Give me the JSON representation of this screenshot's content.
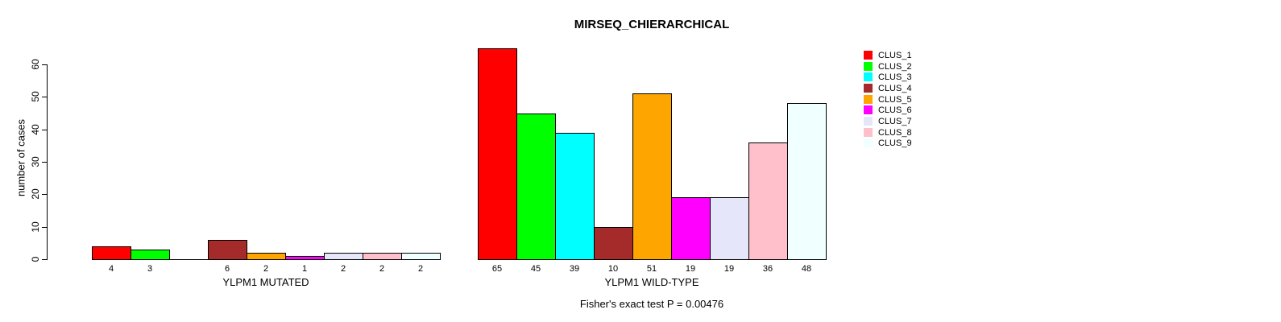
{
  "chart_data": {
    "type": "bar",
    "title": "MIRSEQ_CHIERARCHICAL",
    "ylabel": "number of cases",
    "ylim": [
      0,
      65
    ],
    "yticks": [
      "0",
      "10",
      "20",
      "30",
      "40",
      "50",
      "60"
    ],
    "grid": false,
    "legend_position": "right",
    "legend": [
      {
        "name": "CLUS_1",
        "color": "#FF0000"
      },
      {
        "name": "CLUS_2",
        "color": "#00FF00"
      },
      {
        "name": "CLUS_3",
        "color": "#00FFFF"
      },
      {
        "name": "CLUS_4",
        "color": "#A52A2A"
      },
      {
        "name": "CLUS_5",
        "color": "#FFA500"
      },
      {
        "name": "CLUS_6",
        "color": "#FF00FF"
      },
      {
        "name": "CLUS_7",
        "color": "#E6E6FA"
      },
      {
        "name": "CLUS_8",
        "color": "#FFC0CB"
      },
      {
        "name": "CLUS_9",
        "color": "#F0FFFF"
      }
    ],
    "groups": [
      {
        "label": "YLPM1 MUTATED",
        "values": [
          4,
          3,
          0,
          6,
          2,
          1,
          2,
          2,
          2
        ],
        "bar_labels": [
          "4",
          "3",
          "",
          "6",
          "2",
          "1",
          "2",
          "2",
          "2"
        ]
      },
      {
        "label": "YLPM1 WILD-TYPE",
        "values": [
          65,
          45,
          39,
          10,
          51,
          19,
          19,
          36,
          48
        ],
        "bar_labels": [
          "65",
          "45",
          "39",
          "10",
          "51",
          "19",
          "19",
          "36",
          "48"
        ]
      }
    ],
    "annotation": "Fisher's exact test P = 0.00476"
  }
}
